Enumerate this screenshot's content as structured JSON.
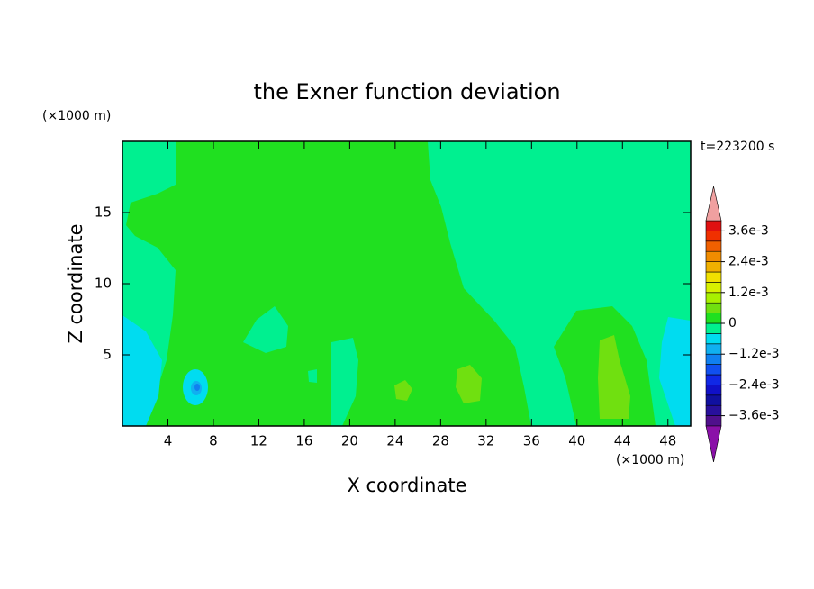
{
  "chart_data": {
    "type": "contour",
    "title": "the Exner function deviation",
    "xlabel": "X coordinate",
    "ylabel": "Z coordinate",
    "xunit": "(×1000 m)",
    "yunit": "(×1000 m)",
    "annotation": "t=223200 s",
    "xlim": [
      0,
      50
    ],
    "ylim": [
      0,
      20
    ],
    "xticks": [
      4,
      8,
      12,
      16,
      20,
      24,
      28,
      32,
      36,
      40,
      44,
      48
    ],
    "yticks": [
      5,
      10,
      15
    ],
    "colorbar": {
      "clim": [
        -0.004,
        0.004
      ],
      "levels": [
        -0.004,
        -0.0036,
        -0.0032,
        -0.0028,
        -0.0024,
        -0.002,
        -0.0016,
        -0.0012,
        -0.0008,
        -0.0004,
        0,
        0.0004,
        0.0008,
        0.0012,
        0.0016,
        0.002,
        0.0024,
        0.0028,
        0.0032,
        0.0036,
        0.004
      ],
      "colors": [
        "#50108c",
        "#28109c",
        "#1010a0",
        "#1010c8",
        "#1028e6",
        "#1050f0",
        "#1080f0",
        "#10b0f0",
        "#00dcf0",
        "#00f090",
        "#20e020",
        "#70e010",
        "#a8f000",
        "#d8f000",
        "#f0e000",
        "#f0b000",
        "#f08c00",
        "#f06000",
        "#f03000",
        "#e01010"
      ],
      "under_color": "#8a10a8",
      "over_color": "#f0a0a0",
      "ticks": [
        {
          "value": 0.0036,
          "label": "3.6e-3"
        },
        {
          "value": 0.0024,
          "label": "2.4e-3"
        },
        {
          "value": 0.0012,
          "label": "1.2e-3"
        },
        0,
        {
          "value": -0.0012,
          "label": "−1.2e-3"
        },
        {
          "value": -0.0024,
          "label": "−2.4e-3"
        },
        {
          "value": -0.0036,
          "label": "−3.6e-3"
        }
      ]
    }
  }
}
